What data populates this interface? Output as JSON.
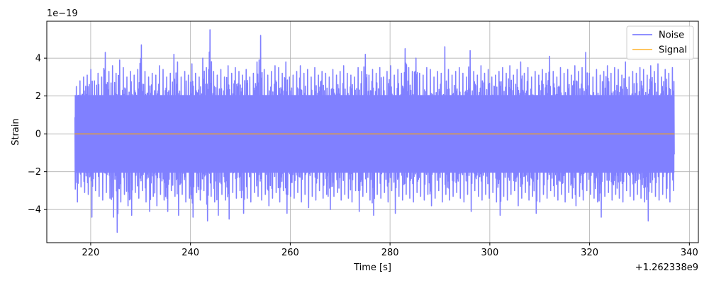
{
  "chart_data": {
    "type": "line",
    "xlabel": "Time [s]",
    "ylabel": "Strain",
    "x_offset_label": "+1.262338e9",
    "y_scale_label": "1e−19",
    "xlim": [
      211.2,
      341.8
    ],
    "ylim": [
      -5.75,
      5.95
    ],
    "x_ticks": [
      220,
      240,
      260,
      280,
      300,
      320,
      340
    ],
    "y_ticks": [
      -4,
      -2,
      0,
      2,
      4
    ],
    "x_tick_labels": [
      "220",
      "240",
      "260",
      "280",
      "300",
      "320",
      "340"
    ],
    "y_tick_labels": [
      "−4",
      "−2",
      "0",
      "2",
      "4"
    ],
    "grid": true,
    "legend_position": "top-right",
    "series": [
      {
        "name": "Noise",
        "color": "#8080ff",
        "x_range": [
          216.8,
          337.0
        ],
        "envelope_upper": [
          2.5,
          2.8,
          3.0,
          3.1,
          3.4,
          2.8,
          3.2,
          3.0,
          4.3,
          3.3,
          3.6,
          3.2,
          3.9,
          3.5,
          3.0,
          3.3,
          3.1,
          3.4,
          4.7,
          3.3,
          3.0,
          3.2,
          3.1,
          3.6,
          3.4,
          3.0,
          3.2,
          4.2,
          3.8,
          3.0,
          3.3,
          3.1,
          3.7,
          3.2,
          3.0,
          4.0,
          3.5,
          5.5,
          3.3,
          3.1,
          3.4,
          3.0,
          3.6,
          3.2,
          3.5,
          3.3,
          3.1,
          3.4,
          3.0,
          3.2,
          3.8,
          5.2,
          3.4,
          3.1,
          3.3,
          3.6,
          3.5,
          3.2,
          3.8,
          3.0,
          3.1,
          3.3,
          3.6,
          3.2,
          3.4,
          3.0,
          3.5,
          3.1,
          3.3,
          3.2,
          3.0,
          3.4,
          3.1,
          3.3,
          3.6,
          3.2,
          3.1,
          3.0,
          3.5,
          3.3,
          4.2,
          3.1,
          3.4,
          3.2,
          3.5,
          3.0,
          3.3,
          3.6,
          3.1,
          3.4,
          3.2,
          4.5,
          3.5,
          3.3,
          4.0,
          3.2,
          3.1,
          3.5,
          3.4,
          3.0,
          3.3,
          3.2,
          4.6,
          3.4,
          3.1,
          3.3,
          3.5,
          3.2,
          3.0,
          4.4,
          3.3,
          3.1,
          3.6,
          3.2,
          3.4,
          3.0,
          3.1,
          3.3,
          3.5,
          3.2,
          3.6,
          3.1,
          3.4,
          3.8,
          3.2,
          3.5,
          3.0,
          3.3,
          3.1,
          3.4,
          3.2,
          4.1,
          3.3,
          3.0,
          3.5,
          3.2,
          3.4,
          3.1,
          3.6,
          3.3,
          3.5,
          4.3,
          3.2,
          3.0,
          3.4,
          3.1,
          3.3,
          3.6,
          3.2,
          3.5,
          3.4,
          3.1,
          3.8,
          3.0,
          3.3,
          3.2,
          3.5,
          3.4,
          3.1,
          3.6,
          3.3,
          3.7,
          3.0,
          3.4,
          3.2,
          3.5,
          3.1,
          3.3,
          3.6,
          3.0
        ],
        "envelope_lower": [
          -3.6,
          -2.8,
          -3.1,
          -3.2,
          -4.4,
          -3.0,
          -3.3,
          -3.5,
          -3.1,
          -3.4,
          -4.4,
          -5.2,
          -3.6,
          -3.2,
          -3.8,
          -4.3,
          -3.1,
          -3.4,
          -3.0,
          -3.6,
          -4.1,
          -3.3,
          -3.8,
          -3.2,
          -3.5,
          -4.1,
          -3.0,
          -3.3,
          -4.3,
          -3.2,
          -3.6,
          -3.4,
          -4.4,
          -3.1,
          -3.5,
          -3.0,
          -4.6,
          -3.3,
          -3.6,
          -4.3,
          -3.2,
          -3.5,
          -4.5,
          -3.1,
          -3.4,
          -3.0,
          -4.2,
          -3.4,
          -3.6,
          -3.1,
          -3.3,
          -3.5,
          -3.2,
          -3.8,
          -3.4,
          -3.1,
          -3.6,
          -3.0,
          -4.2,
          -3.3,
          -3.4,
          -3.1,
          -3.6,
          -3.2,
          -3.9,
          -3.3,
          -3.5,
          -3.0,
          -3.4,
          -3.2,
          -4.0,
          -3.3,
          -3.1,
          -3.5,
          -3.2,
          -3.4,
          -3.6,
          -3.0,
          -4.1,
          -3.3,
          -3.1,
          -3.5,
          -4.3,
          -3.2,
          -3.4,
          -3.1,
          -3.6,
          -3.0,
          -4.2,
          -3.3,
          -3.5,
          -3.2,
          -3.4,
          -3.6,
          -3.1,
          -3.3,
          -3.5,
          -3.2,
          -3.8,
          -3.4,
          -3.0,
          -3.6,
          -3.2,
          -3.5,
          -3.3,
          -3.1,
          -3.4,
          -3.6,
          -3.2,
          -4.1,
          -3.0,
          -3.3,
          -3.5,
          -3.2,
          -3.4,
          -3.1,
          -3.6,
          -4.3,
          -3.3,
          -3.5,
          -3.2,
          -3.0,
          -3.8,
          -3.4,
          -3.1,
          -3.5,
          -3.3,
          -4.2,
          -3.6,
          -3.2,
          -3.4,
          -3.0,
          -3.3,
          -3.5,
          -3.2,
          -3.6,
          -3.1,
          -3.4,
          -3.8,
          -3.3,
          -3.5,
          -3.0,
          -3.2,
          -3.4,
          -3.6,
          -4.4,
          -3.3,
          -3.1,
          -3.5,
          -3.2,
          -3.4,
          -3.6,
          -3.0,
          -3.3,
          -3.5,
          -3.2,
          -3.4,
          -3.6,
          -4.6,
          -3.1,
          -3.3,
          -3.5,
          -3.2,
          -3.4,
          -3.6,
          -3.0
        ]
      },
      {
        "name": "Signal",
        "color": "#ffa500",
        "x": [
          216.8,
          337.0
        ],
        "y": [
          0.0,
          0.0
        ]
      }
    ]
  }
}
